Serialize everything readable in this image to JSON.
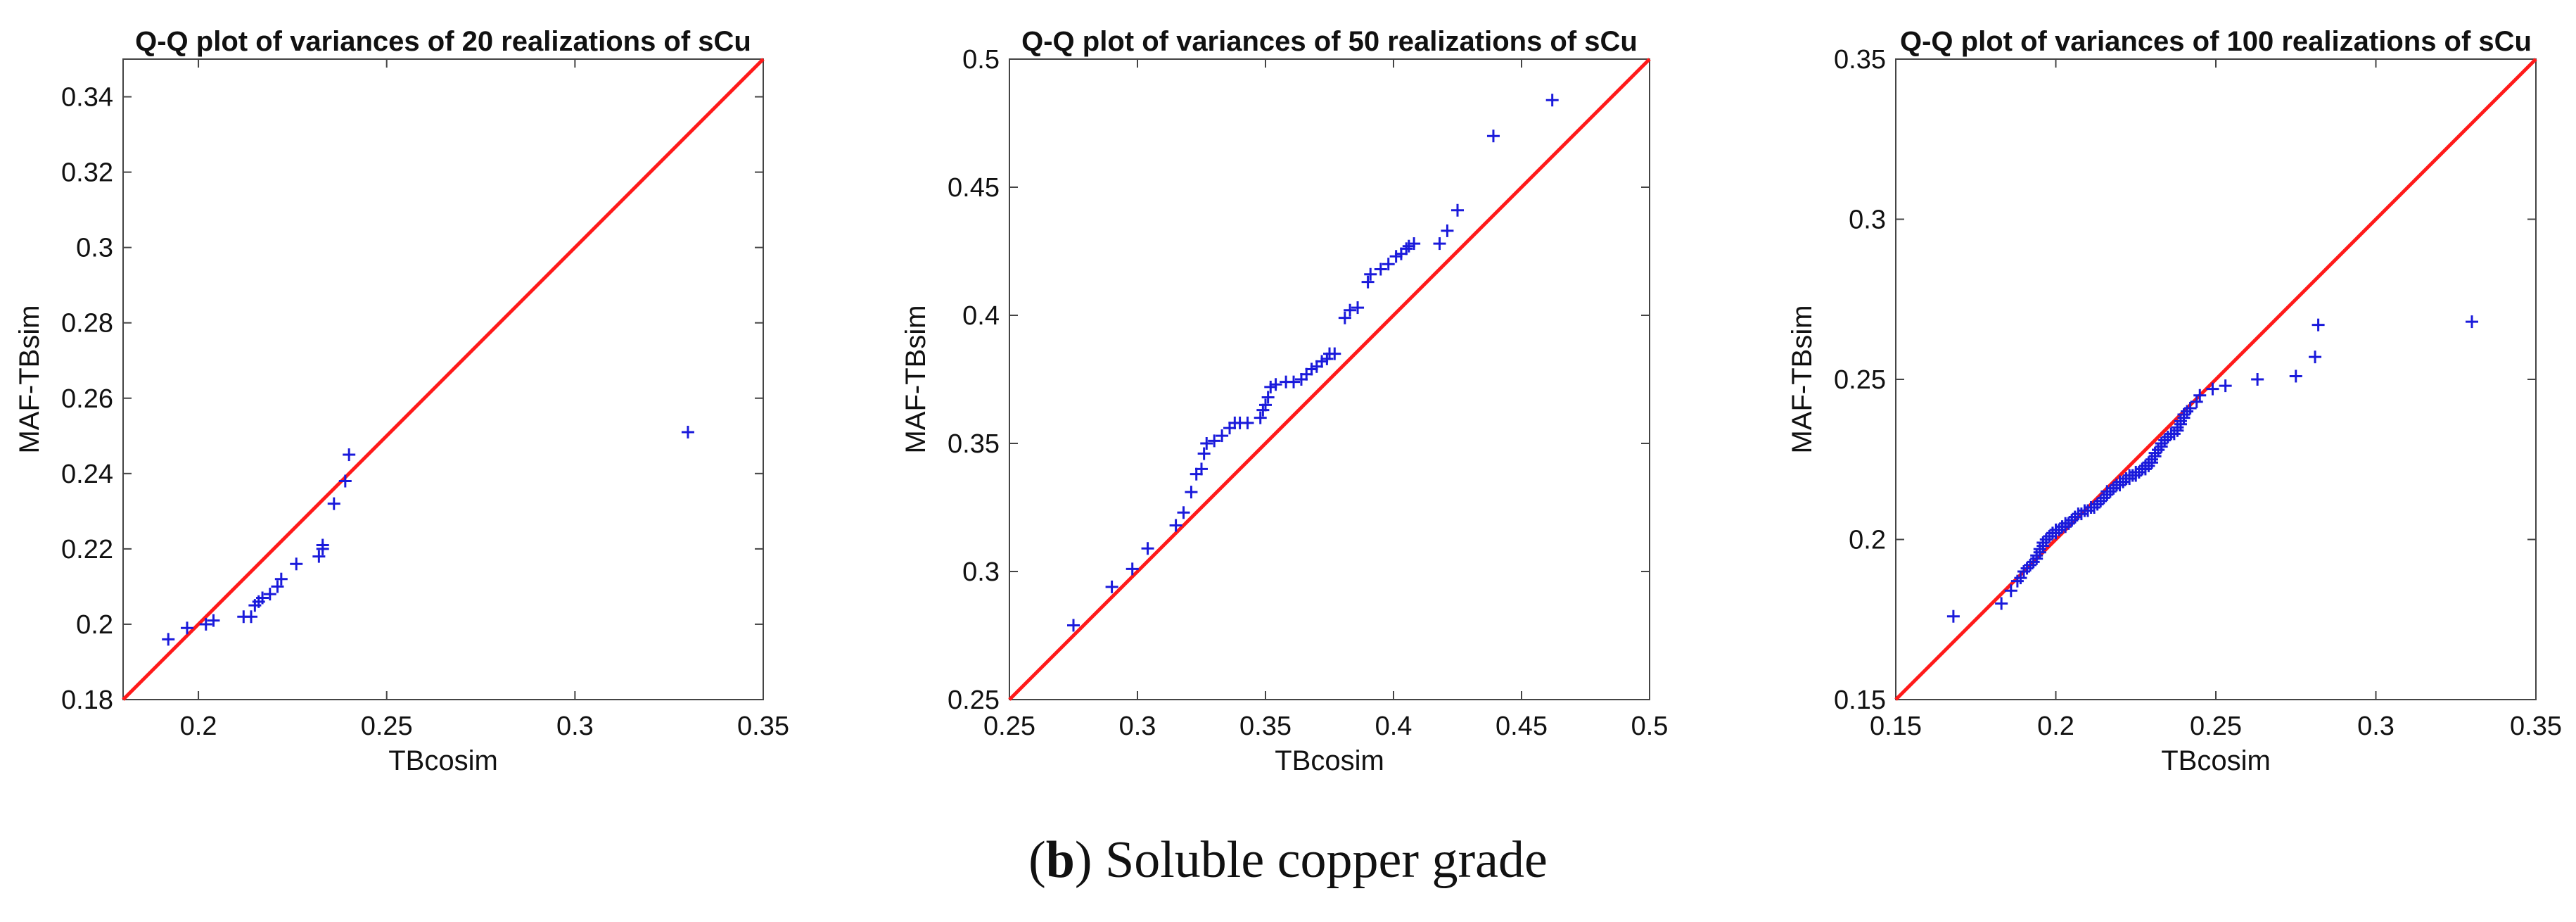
{
  "colors": {
    "points": "#1a1adb",
    "reference_line": "#ff1a1a",
    "axes": "#444444",
    "text": "#111111"
  },
  "chart_data": [
    {
      "type": "scatter",
      "title": "Q-Q plot of variances of 20 realizations of sCu",
      "xlabel": "TBcosim",
      "ylabel": "MAF-TBsim",
      "xlim": [
        0.18,
        0.35
      ],
      "ylim": [
        0.18,
        0.35
      ],
      "xticks": [
        0.2,
        0.25,
        0.3,
        0.35
      ],
      "xtick_labels": [
        "0.2",
        "0.25",
        "0.3",
        "0.35"
      ],
      "yticks": [
        0.18,
        0.2,
        0.22,
        0.24,
        0.26,
        0.28,
        0.3,
        0.32,
        0.34
      ],
      "ytick_labels": [
        "0.18",
        "0.2",
        "0.22",
        "0.24",
        "0.26",
        "0.28",
        "0.3",
        "0.32",
        "0.34"
      ],
      "reference_line": "y = x",
      "marker": "+",
      "x": [
        0.192,
        0.197,
        0.202,
        0.204,
        0.212,
        0.214,
        0.215,
        0.216,
        0.217,
        0.219,
        0.221,
        0.222,
        0.226,
        0.232,
        0.233,
        0.233,
        0.236,
        0.239,
        0.24,
        0.33
      ],
      "y": [
        0.196,
        0.199,
        0.2,
        0.201,
        0.202,
        0.202,
        0.205,
        0.206,
        0.207,
        0.208,
        0.21,
        0.212,
        0.216,
        0.218,
        0.22,
        0.221,
        0.232,
        0.238,
        0.245,
        0.251
      ]
    },
    {
      "type": "scatter",
      "title": "Q-Q plot of variances of 50 realizations of sCu",
      "xlabel": "TBcosim",
      "ylabel": "MAF-TBsim",
      "xlim": [
        0.25,
        0.5
      ],
      "ylim": [
        0.25,
        0.5
      ],
      "xticks": [
        0.25,
        0.3,
        0.35,
        0.4,
        0.45,
        0.5
      ],
      "xtick_labels": [
        "0.25",
        "0.3",
        "0.35",
        "0.4",
        "0.45",
        "0.5"
      ],
      "yticks": [
        0.25,
        0.3,
        0.35,
        0.4,
        0.45,
        0.5
      ],
      "ytick_labels": [
        "0.25",
        "0.3",
        "0.35",
        "0.4",
        "0.45",
        "0.5"
      ],
      "reference_line": "y = x",
      "marker": "+",
      "x": [
        0.275,
        0.29,
        0.298,
        0.304,
        0.315,
        0.318,
        0.321,
        0.323,
        0.325,
        0.326,
        0.327,
        0.33,
        0.333,
        0.336,
        0.338,
        0.34,
        0.343,
        0.348,
        0.349,
        0.35,
        0.351,
        0.352,
        0.354,
        0.358,
        0.361,
        0.364,
        0.366,
        0.368,
        0.37,
        0.372,
        0.374,
        0.375,
        0.377,
        0.381,
        0.383,
        0.386,
        0.39,
        0.391,
        0.395,
        0.398,
        0.401,
        0.403,
        0.405,
        0.406,
        0.408,
        0.418,
        0.421,
        0.425,
        0.439,
        0.462
      ],
      "y": [
        0.279,
        0.294,
        0.301,
        0.309,
        0.318,
        0.323,
        0.331,
        0.338,
        0.34,
        0.346,
        0.35,
        0.351,
        0.353,
        0.356,
        0.358,
        0.358,
        0.358,
        0.36,
        0.363,
        0.365,
        0.368,
        0.372,
        0.373,
        0.374,
        0.374,
        0.375,
        0.377,
        0.379,
        0.38,
        0.382,
        0.383,
        0.385,
        0.385,
        0.399,
        0.402,
        0.403,
        0.413,
        0.416,
        0.418,
        0.42,
        0.423,
        0.424,
        0.426,
        0.427,
        0.428,
        0.428,
        0.433,
        0.441,
        0.47,
        0.484
      ]
    },
    {
      "type": "scatter",
      "title": "Q-Q plot of variances of 100  realizations of sCu",
      "xlabel": "TBcosim",
      "ylabel": "MAF-TBsim",
      "xlim": [
        0.15,
        0.35
      ],
      "ylim": [
        0.15,
        0.35
      ],
      "xticks": [
        0.15,
        0.2,
        0.25,
        0.3,
        0.35
      ],
      "xtick_labels": [
        "0.15",
        "0.2",
        "0.25",
        "0.3",
        "0.35"
      ],
      "yticks": [
        0.15,
        0.2,
        0.25,
        0.3,
        0.35
      ],
      "ytick_labels": [
        "0.15",
        "0.2",
        "0.25",
        "0.3",
        "0.35"
      ],
      "reference_line": "y = x",
      "marker": "+",
      "x": [
        0.168,
        0.183,
        0.186,
        0.188,
        0.189,
        0.19,
        0.191,
        0.192,
        0.193,
        0.194,
        0.194,
        0.195,
        0.195,
        0.196,
        0.196,
        0.197,
        0.197,
        0.198,
        0.198,
        0.199,
        0.199,
        0.2,
        0.2,
        0.201,
        0.201,
        0.202,
        0.202,
        0.203,
        0.203,
        0.204,
        0.204,
        0.205,
        0.205,
        0.206,
        0.206,
        0.207,
        0.208,
        0.209,
        0.21,
        0.211,
        0.212,
        0.213,
        0.214,
        0.215,
        0.216,
        0.216,
        0.217,
        0.218,
        0.218,
        0.219,
        0.219,
        0.22,
        0.22,
        0.221,
        0.221,
        0.222,
        0.222,
        0.223,
        0.223,
        0.224,
        0.224,
        0.225,
        0.225,
        0.226,
        0.226,
        0.227,
        0.227,
        0.228,
        0.228,
        0.229,
        0.229,
        0.23,
        0.23,
        0.231,
        0.231,
        0.232,
        0.232,
        0.233,
        0.233,
        0.234,
        0.235,
        0.236,
        0.237,
        0.238,
        0.238,
        0.239,
        0.239,
        0.24,
        0.24,
        0.241,
        0.242,
        0.244,
        0.245,
        0.249,
        0.253,
        0.263,
        0.275,
        0.281,
        0.282,
        0.33
      ],
      "y": [
        0.176,
        0.18,
        0.184,
        0.187,
        0.188,
        0.19,
        0.191,
        0.192,
        0.193,
        0.194,
        0.195,
        0.196,
        0.197,
        0.198,
        0.199,
        0.2,
        0.2,
        0.201,
        0.201,
        0.202,
        0.202,
        0.202,
        0.203,
        0.203,
        0.203,
        0.204,
        0.204,
        0.204,
        0.205,
        0.205,
        0.205,
        0.206,
        0.206,
        0.207,
        0.207,
        0.208,
        0.208,
        0.209,
        0.209,
        0.21,
        0.21,
        0.211,
        0.212,
        0.213,
        0.214,
        0.215,
        0.215,
        0.216,
        0.216,
        0.217,
        0.217,
        0.217,
        0.218,
        0.218,
        0.218,
        0.219,
        0.219,
        0.219,
        0.22,
        0.22,
        0.22,
        0.22,
        0.221,
        0.221,
        0.221,
        0.222,
        0.222,
        0.222,
        0.223,
        0.223,
        0.224,
        0.224,
        0.225,
        0.226,
        0.227,
        0.228,
        0.228,
        0.229,
        0.23,
        0.231,
        0.232,
        0.233,
        0.233,
        0.234,
        0.235,
        0.236,
        0.237,
        0.238,
        0.239,
        0.24,
        0.241,
        0.243,
        0.245,
        0.247,
        0.248,
        0.25,
        0.251,
        0.257,
        0.267,
        0.268
      ]
    }
  ],
  "caption": {
    "label": "b",
    "text": " Soluble copper grade"
  }
}
